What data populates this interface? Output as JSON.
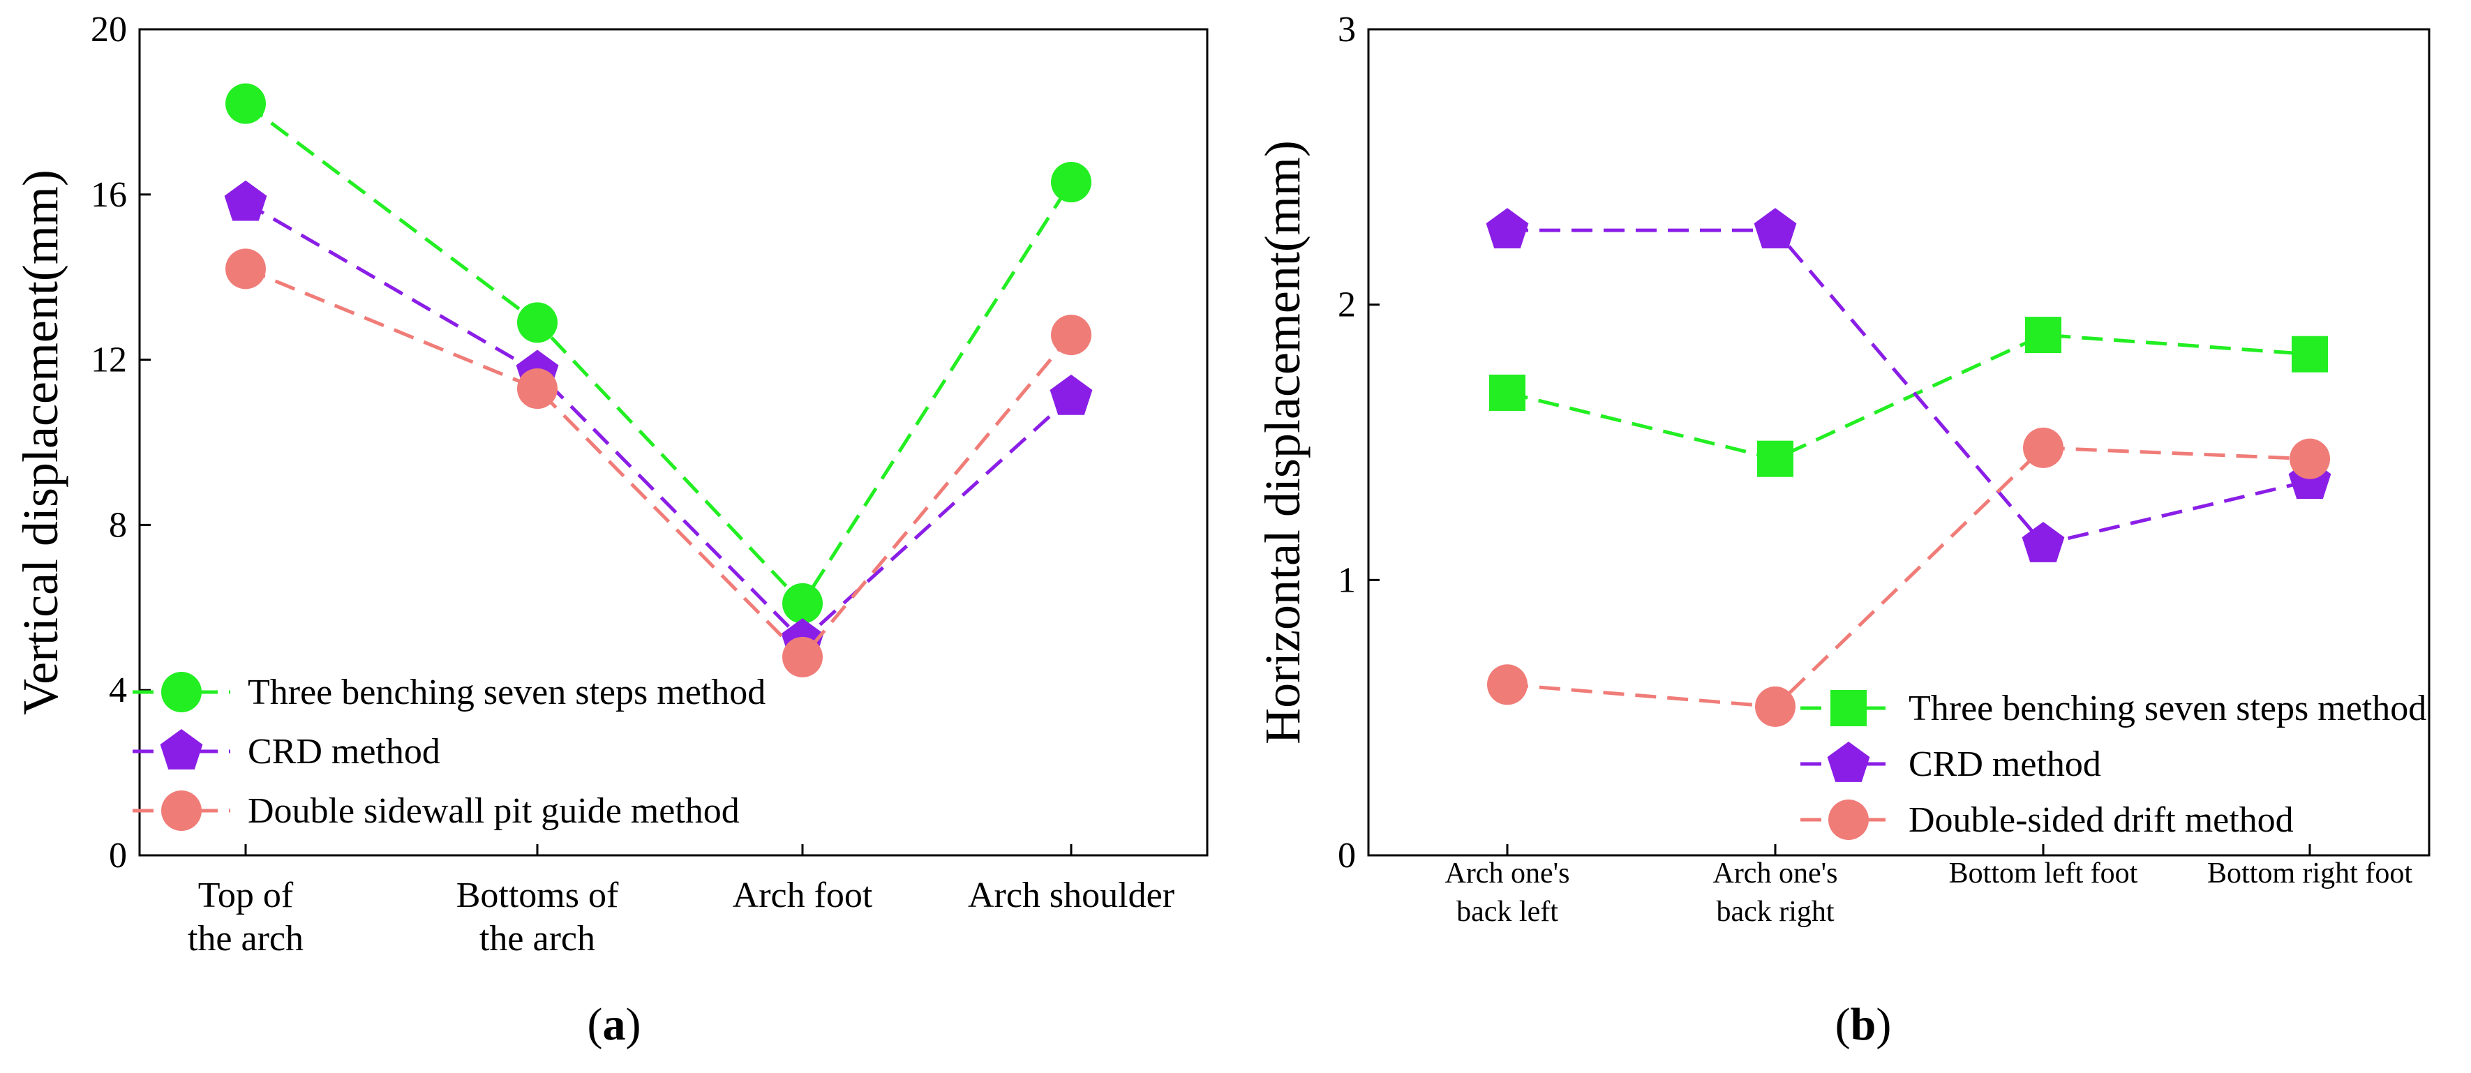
{
  "chart_data": [
    {
      "type": "line",
      "panel_label": "a",
      "title": "",
      "xlabel": "",
      "ylabel": "Vertical displacement(mm)",
      "ylim": [
        0,
        20
      ],
      "yticks": [
        0,
        4,
        8,
        12,
        16,
        20
      ],
      "grid": false,
      "legend_position": "bottom-left",
      "categories": [
        [
          "Top of",
          "the arch"
        ],
        [
          "Bottoms of",
          "the arch"
        ],
        [
          "Arch foot"
        ],
        [
          "Arch shoulder"
        ]
      ],
      "series": [
        {
          "name": "Three benching seven steps method",
          "color": "#22ee22",
          "marker": "circle",
          "values": [
            18.2,
            12.9,
            6.1,
            16.3
          ]
        },
        {
          "name": "CRD method",
          "color": "#8a1ee6",
          "marker": "pentagon",
          "values": [
            15.8,
            11.7,
            5.2,
            11.1
          ]
        },
        {
          "name": "Double sidewall pit guide method",
          "color": "#f07c78",
          "marker": "circle",
          "values": [
            14.2,
            11.3,
            4.8,
            12.6
          ]
        }
      ]
    },
    {
      "type": "line",
      "panel_label": "b",
      "title": "",
      "xlabel": "",
      "ylabel": "Horizontal displacement(mm)",
      "ylim": [
        0,
        3
      ],
      "yticks": [
        0,
        1,
        2,
        3
      ],
      "grid": false,
      "legend_position": "bottom-right",
      "categories": [
        [
          "Arch one's",
          "back left"
        ],
        [
          "Arch one's",
          "back right"
        ],
        [
          "Bottom left foot"
        ],
        [
          "Bottom right foot"
        ]
      ],
      "series": [
        {
          "name": "Three benching seven steps method",
          "color": "#22ee22",
          "marker": "square",
          "values": [
            1.68,
            1.44,
            1.89,
            1.82
          ]
        },
        {
          "name": "CRD method",
          "color": "#8a1ee6",
          "marker": "pentagon",
          "values": [
            2.27,
            2.27,
            1.13,
            1.36
          ]
        },
        {
          "name": "Double-sided drift method",
          "color": "#f07c78",
          "marker": "circle",
          "values": [
            0.62,
            0.54,
            1.48,
            1.44
          ]
        }
      ]
    }
  ]
}
